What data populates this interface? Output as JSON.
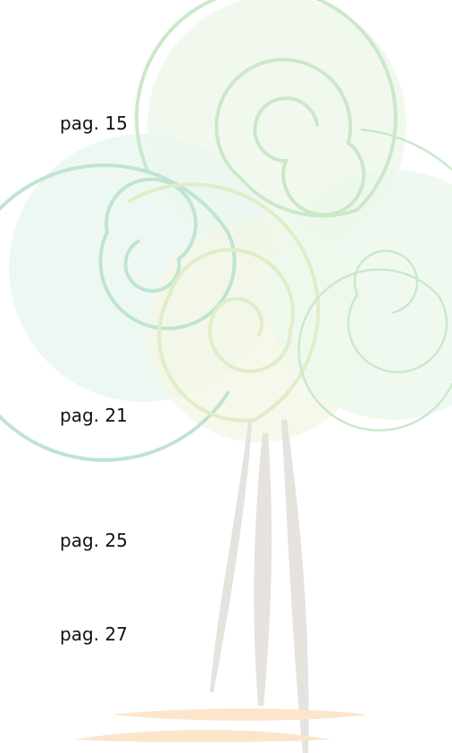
{
  "page_refs": [
    "pag. 15",
    "pag. 21",
    "pag. 25",
    "pag. 27"
  ]
}
